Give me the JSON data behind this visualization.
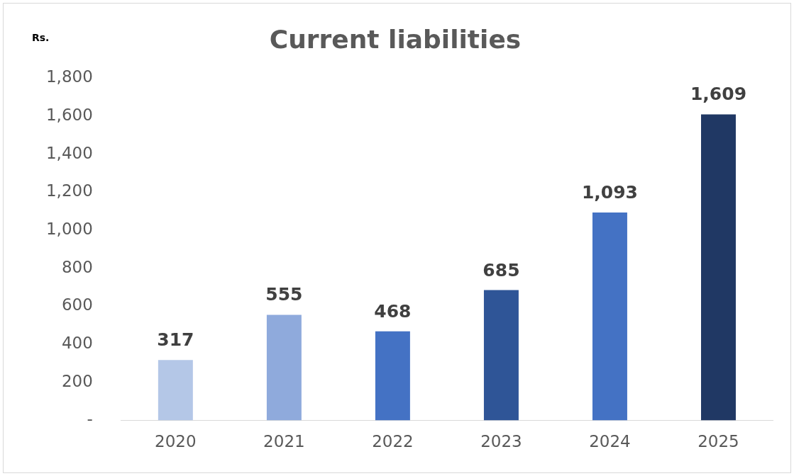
{
  "chart_data": {
    "type": "bar",
    "title": "Current liabilities",
    "ylabel": "Rs.",
    "categories": [
      "2020",
      "2021",
      "2022",
      "2023",
      "2024",
      "2025"
    ],
    "values": [
      317,
      555,
      468,
      685,
      1093,
      1609
    ],
    "colors": [
      "#b4c7e7",
      "#8faadc",
      "#4472c4",
      "#2f5597",
      "#4472c4",
      "#203864"
    ],
    "value_labels": [
      "317",
      "555",
      "468",
      "685",
      "1,093",
      "1,609"
    ],
    "ylim": [
      0,
      1800
    ],
    "yticks": [
      {
        "value": 0,
        "label": "-"
      },
      200,
      400,
      600,
      800,
      {
        "value": 1000,
        "label": "1,000"
      },
      {
        "value": 1200,
        "label": "1,200"
      },
      {
        "value": 1400,
        "label": "1,400"
      },
      {
        "value": 1600,
        "label": "1,600"
      },
      {
        "value": 1800,
        "label": "1,800"
      }
    ],
    "grid": false,
    "legend": false
  }
}
